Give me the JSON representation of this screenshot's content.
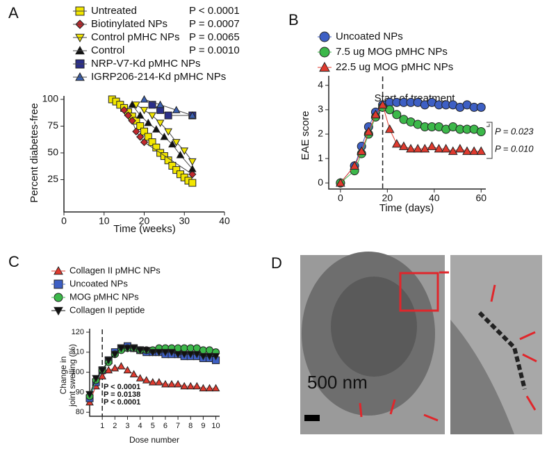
{
  "chart_data": [
    {
      "type": "line",
      "panel": "A",
      "xlabel": "Time (weeks)",
      "ylabel": "Percent diabetes-free",
      "xlim": [
        0,
        40
      ],
      "ylim": [
        0,
        100
      ],
      "xticks": [
        0,
        10,
        20,
        30,
        40
      ],
      "yticks": [
        25,
        50,
        75,
        100
      ],
      "series": [
        {
          "name": "Untreated",
          "annotation": "P < 0.0001",
          "color": "#f2e600",
          "marker": "square",
          "x": [
            12,
            13,
            14,
            15,
            16,
            17,
            18,
            19,
            20,
            21,
            22,
            23,
            24,
            25,
            26,
            27,
            28,
            29,
            30,
            31,
            32
          ],
          "values": [
            100,
            98,
            95,
            92,
            88,
            84,
            80,
            75,
            70,
            65,
            60,
            55,
            50,
            47,
            43,
            38,
            34,
            30,
            27,
            24,
            22
          ]
        },
        {
          "name": "Biotinylated NPs",
          "annotation": "P = 0.0007",
          "color": "#c0282d",
          "marker": "diamond",
          "x": [
            15,
            16,
            17,
            18,
            19,
            20,
            32
          ],
          "values": [
            90,
            85,
            80,
            70,
            65,
            60,
            30
          ]
        },
        {
          "name": "Control pMHC NPs",
          "annotation": "P = 0.0065",
          "color": "#f2e600",
          "marker": "triangle-down",
          "x": [
            18,
            20,
            22,
            24,
            26,
            28,
            30,
            32
          ],
          "values": [
            95,
            90,
            85,
            78,
            70,
            60,
            52,
            42
          ]
        },
        {
          "name": "Control",
          "annotation": "P = 0.0010",
          "color": "#111111",
          "marker": "triangle",
          "x": [
            17,
            19,
            21,
            23,
            25,
            27,
            29,
            32
          ],
          "values": [
            95,
            85,
            78,
            72,
            65,
            58,
            48,
            35
          ]
        },
        {
          "name": "NRP-V7-Kd pMHC NPs",
          "color": "#2b2f8a",
          "marker": "square",
          "x": [
            22,
            24,
            26,
            32
          ],
          "values": [
            95,
            90,
            85,
            85
          ]
        },
        {
          "name": "IGRP206-214-Kd pMHC NPs",
          "color": "#3a5fb0",
          "marker": "triangle",
          "x": [
            20,
            24,
            28,
            32
          ],
          "values": [
            100,
            95,
            90,
            85
          ]
        }
      ]
    },
    {
      "type": "line",
      "panel": "B",
      "xlabel": "Time (days)",
      "ylabel": "EAE score",
      "xlim": [
        -5,
        62
      ],
      "ylim": [
        -0.25,
        4.25
      ],
      "xticks": [
        0,
        20,
        40,
        60
      ],
      "yticks": [
        0,
        1,
        2,
        3,
        4
      ],
      "treatment_start": 18,
      "treatment_label": "Start of treatment",
      "annotations": [
        "P = 0.023",
        "P = 0.010"
      ],
      "x": [
        0,
        6,
        9,
        12,
        15,
        18,
        21,
        24,
        27,
        30,
        33,
        36,
        39,
        42,
        45,
        48,
        51,
        54,
        57,
        60
      ],
      "series": [
        {
          "name": "Uncoated NPs",
          "color": "#3d5fc4",
          "marker": "circle",
          "values": [
            0,
            0.7,
            1.5,
            2.3,
            2.9,
            3.2,
            3.3,
            3.3,
            3.3,
            3.3,
            3.3,
            3.2,
            3.3,
            3.2,
            3.2,
            3.2,
            3.1,
            3.2,
            3.1,
            3.1
          ]
        },
        {
          "name": "7.5 ug MOG pMHC NPs",
          "color": "#3cb84a",
          "marker": "circle",
          "values": [
            0,
            0.5,
            1.2,
            2.0,
            2.7,
            3.1,
            3.0,
            2.8,
            2.6,
            2.5,
            2.4,
            2.3,
            2.3,
            2.3,
            2.2,
            2.3,
            2.2,
            2.2,
            2.2,
            2.1
          ]
        },
        {
          "name": "22.5 ug MOG pMHC NPs",
          "color": "#e03a2e",
          "marker": "triangle",
          "values": [
            0,
            0.7,
            1.3,
            2.1,
            2.8,
            3.2,
            2.2,
            1.6,
            1.5,
            1.4,
            1.4,
            1.4,
            1.5,
            1.4,
            1.4,
            1.3,
            1.4,
            1.3,
            1.3,
            1.3
          ]
        }
      ]
    },
    {
      "type": "line",
      "panel": "C",
      "xlabel": "Dose number",
      "ylabel": [
        "Change in",
        "joint swelling (%)"
      ],
      "xlim": [
        0,
        10.3
      ],
      "ylim": [
        78,
        120
      ],
      "xticks": [
        1,
        2,
        3,
        4,
        5,
        6,
        7,
        8,
        9,
        10
      ],
      "yticks": [
        80,
        90,
        100,
        110,
        120
      ],
      "treatment_start": 1,
      "x": [
        0,
        0.5,
        1,
        1.5,
        2,
        2.5,
        3,
        3.5,
        4,
        4.5,
        5,
        5.5,
        6,
        6.5,
        7,
        7.5,
        8,
        8.5,
        9,
        9.5,
        10
      ],
      "series": [
        {
          "name": "Collagen II pMHC NPs",
          "color": "#e03a2e",
          "marker": "triangle",
          "values": [
            85,
            93,
            98,
            101,
            102,
            103,
            101,
            99,
            97,
            96,
            95,
            95,
            94,
            94,
            94,
            93,
            93,
            93,
            92,
            92,
            92
          ]
        },
        {
          "name": "Uncoated NPs",
          "annotation": "P < 0.0001",
          "color": "#3d5fc4",
          "marker": "square",
          "values": [
            87,
            95,
            101,
            106,
            110,
            112,
            113,
            112,
            111,
            110,
            110,
            110,
            109,
            109,
            109,
            108,
            108,
            108,
            107,
            107,
            106
          ]
        },
        {
          "name": "MOG pMHC NPs",
          "annotation": "P = 0.0138",
          "color": "#3cb84a",
          "marker": "circle",
          "values": [
            88,
            96,
            101,
            105,
            109,
            111,
            112,
            112,
            111,
            111,
            111,
            112,
            112,
            112,
            112,
            112,
            112,
            112,
            111,
            111,
            110
          ]
        },
        {
          "name": "Collagen II peptide",
          "annotation": "P < 0.0001",
          "color": "#111111",
          "marker": "triangle-down",
          "values": [
            89,
            97,
            101,
            106,
            109,
            112,
            112,
            112,
            111,
            111,
            110,
            110,
            110,
            110,
            109,
            109,
            109,
            109,
            108,
            108,
            108
          ]
        }
      ]
    }
  ],
  "image_panel": {
    "panel": "D",
    "scale_label": "500 nm"
  }
}
